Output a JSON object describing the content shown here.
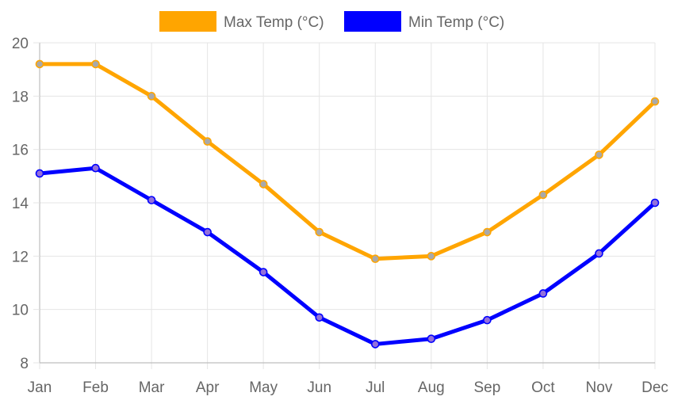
{
  "chart_data": {
    "type": "line",
    "title": "",
    "xlabel": "",
    "ylabel": "",
    "categories": [
      "Jan",
      "Feb",
      "Mar",
      "Apr",
      "May",
      "Jun",
      "Jul",
      "Aug",
      "Sep",
      "Oct",
      "Nov",
      "Dec"
    ],
    "ylim": [
      8,
      20
    ],
    "yticks": [
      "8",
      "10",
      "12",
      "14",
      "16",
      "18",
      "20"
    ],
    "grid": true,
    "legend_position": "top",
    "series": [
      {
        "name": "Max Temp (°C)",
        "color": "#FFA500",
        "point_fill": "#A9A9A9",
        "values": [
          19.2,
          19.2,
          18.0,
          16.3,
          14.7,
          12.9,
          11.9,
          12.0,
          12.9,
          14.3,
          15.8,
          17.8
        ]
      },
      {
        "name": "Min Temp (°C)",
        "color": "#0000FF",
        "point_fill": "#9370DB",
        "values": [
          15.1,
          15.3,
          14.1,
          12.9,
          11.4,
          9.7,
          8.7,
          8.9,
          9.6,
          10.6,
          12.1,
          14.0
        ]
      }
    ]
  }
}
